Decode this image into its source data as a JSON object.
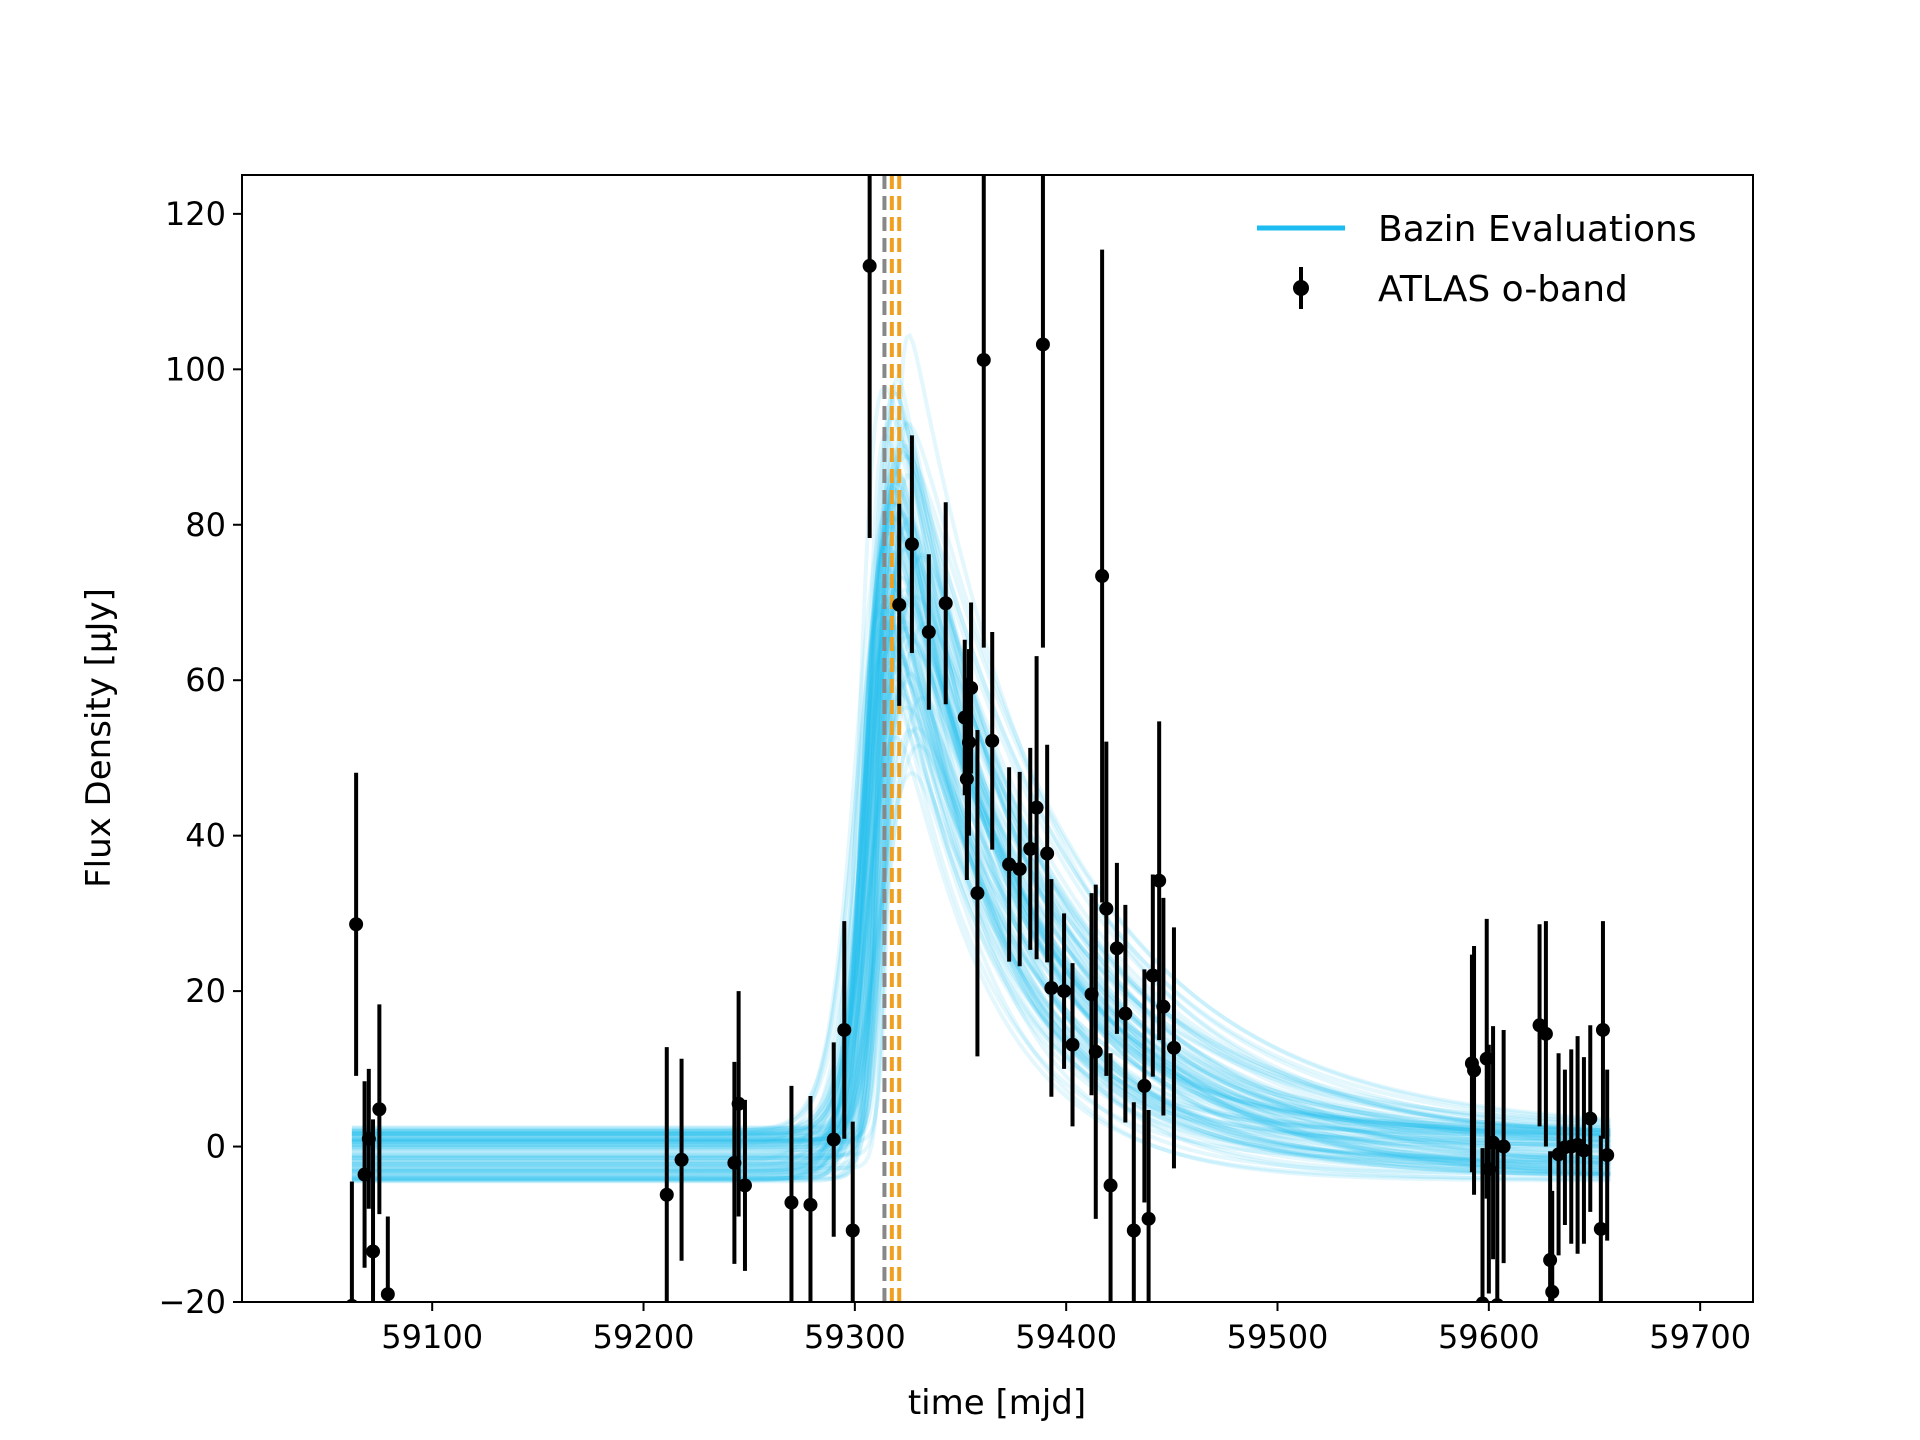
{
  "chart_data": {
    "type": "scatter",
    "title": "",
    "xlabel": "time [mjd]",
    "ylabel": "Flux Density [μJy]",
    "xlim": [
      59010,
      59725
    ],
    "ylim": [
      -20,
      125
    ],
    "xticks": [
      59100,
      59200,
      59300,
      59400,
      59500,
      59600,
      59700
    ],
    "yticks": [
      -20,
      0,
      20,
      40,
      60,
      80,
      100,
      120
    ],
    "xtick_labels": [
      "59100",
      "59200",
      "59300",
      "59400",
      "59500",
      "59600",
      "59700"
    ],
    "ytick_labels": [
      "−20",
      "0",
      "20",
      "40",
      "60",
      "80",
      "100",
      "120"
    ],
    "grid": false,
    "legend_position": "top-right",
    "colors": {
      "model": "#1cbcf2",
      "data": "#000000",
      "peak_gray": "#888888",
      "peak_orange": "#f0a020"
    },
    "vlines": [
      {
        "x": 59314,
        "style": "dashed",
        "color": "#888888"
      },
      {
        "x": 59317.5,
        "style": "dashed",
        "color": "#f0a020"
      },
      {
        "x": 59321,
        "style": "dashed",
        "color": "#f0a020"
      }
    ],
    "series": [
      {
        "name": "Bazin Evaluations",
        "kind": "model-curves",
        "x_range": [
          59062,
          59658
        ],
        "model": "Bazin",
        "n_curves": 100,
        "amplitude_range": [
          78,
          122
        ],
        "t0_range": [
          59302,
          59318
        ],
        "rise_time_range": [
          2.0,
          7.5
        ],
        "fall_time_range": [
          42,
          82
        ],
        "baseline_range": [
          -4.5,
          2.5
        ]
      },
      {
        "name": "ATLAS o-band",
        "kind": "errorbar",
        "points": [
          [
            59062,
            -20.5,
            16
          ],
          [
            59064,
            28.6,
            19.5
          ],
          [
            59068,
            -3.6,
            12
          ],
          [
            59070,
            1.0,
            9
          ],
          [
            59072,
            -13.5,
            17
          ],
          [
            59075,
            4.8,
            13.5
          ],
          [
            59079,
            -19.0,
            10
          ],
          [
            59211,
            -6.2,
            19
          ],
          [
            59218,
            -1.7,
            13
          ],
          [
            59243,
            -2.1,
            13
          ],
          [
            59245,
            5.5,
            14.5
          ],
          [
            59248,
            -5.0,
            11
          ],
          [
            59270,
            -7.2,
            15
          ],
          [
            59279,
            -7.5,
            14
          ],
          [
            59290,
            0.9,
            12.5
          ],
          [
            59295,
            15.0,
            14
          ],
          [
            59299,
            -10.8,
            14
          ],
          [
            59307,
            113.3,
            35
          ],
          [
            59321,
            69.7,
            13
          ],
          [
            59327,
            77.5,
            14
          ],
          [
            59335,
            66.2,
            10
          ],
          [
            59343,
            69.9,
            13
          ],
          [
            59352,
            55.2,
            10
          ],
          [
            59353,
            47.3,
            13
          ],
          [
            59354,
            52.0,
            12
          ],
          [
            59355,
            59.0,
            11
          ],
          [
            59358,
            32.6,
            21
          ],
          [
            59361,
            101.2,
            37
          ],
          [
            59365,
            52.2,
            14
          ],
          [
            59373,
            36.3,
            12.5
          ],
          [
            59378,
            35.7,
            12.5
          ],
          [
            59383,
            38.3,
            13
          ],
          [
            59386,
            43.6,
            19.5
          ],
          [
            59389,
            103.2,
            39
          ],
          [
            59391,
            37.7,
            14
          ],
          [
            59393,
            20.4,
            14
          ],
          [
            59399,
            20.0,
            10
          ],
          [
            59403,
            13.1,
            10.5
          ],
          [
            59412,
            19.6,
            13
          ],
          [
            59414,
            12.2,
            21.5
          ],
          [
            59417,
            73.4,
            42
          ],
          [
            59419,
            30.6,
            21.5
          ],
          [
            59421,
            -5.0,
            17
          ],
          [
            59424,
            25.5,
            11
          ],
          [
            59428,
            17.1,
            14
          ],
          [
            59432,
            -10.8,
            16.5
          ],
          [
            59437,
            7.8,
            15
          ],
          [
            59439,
            -9.3,
            14
          ],
          [
            59441,
            22.0,
            13
          ],
          [
            59444,
            34.2,
            20.5
          ],
          [
            59446,
            18.0,
            14
          ],
          [
            59451,
            12.7,
            15.5
          ],
          [
            59592,
            10.7,
            14
          ],
          [
            59593,
            9.8,
            16
          ],
          [
            59597,
            -20.2,
            20
          ],
          [
            59599,
            11.3,
            18
          ],
          [
            59600,
            -2.9,
            16
          ],
          [
            59602,
            0.5,
            15
          ],
          [
            59604,
            -20.4,
            21
          ],
          [
            59607,
            0.0,
            15
          ],
          [
            59624,
            15.6,
            13
          ],
          [
            59627,
            14.5,
            14.5
          ],
          [
            59629,
            -14.6,
            14
          ],
          [
            59630,
            -18.7,
            13
          ],
          [
            59633,
            -1.0,
            13
          ],
          [
            59636,
            -0.1,
            10
          ],
          [
            59639,
            0.0,
            12.5
          ],
          [
            59642,
            0.2,
            14
          ],
          [
            59645,
            -0.5,
            12
          ],
          [
            59648,
            3.6,
            12
          ],
          [
            59653,
            -10.6,
            12
          ],
          [
            59654,
            15.0,
            14
          ],
          [
            59656,
            -1.1,
            11
          ]
        ]
      }
    ]
  }
}
